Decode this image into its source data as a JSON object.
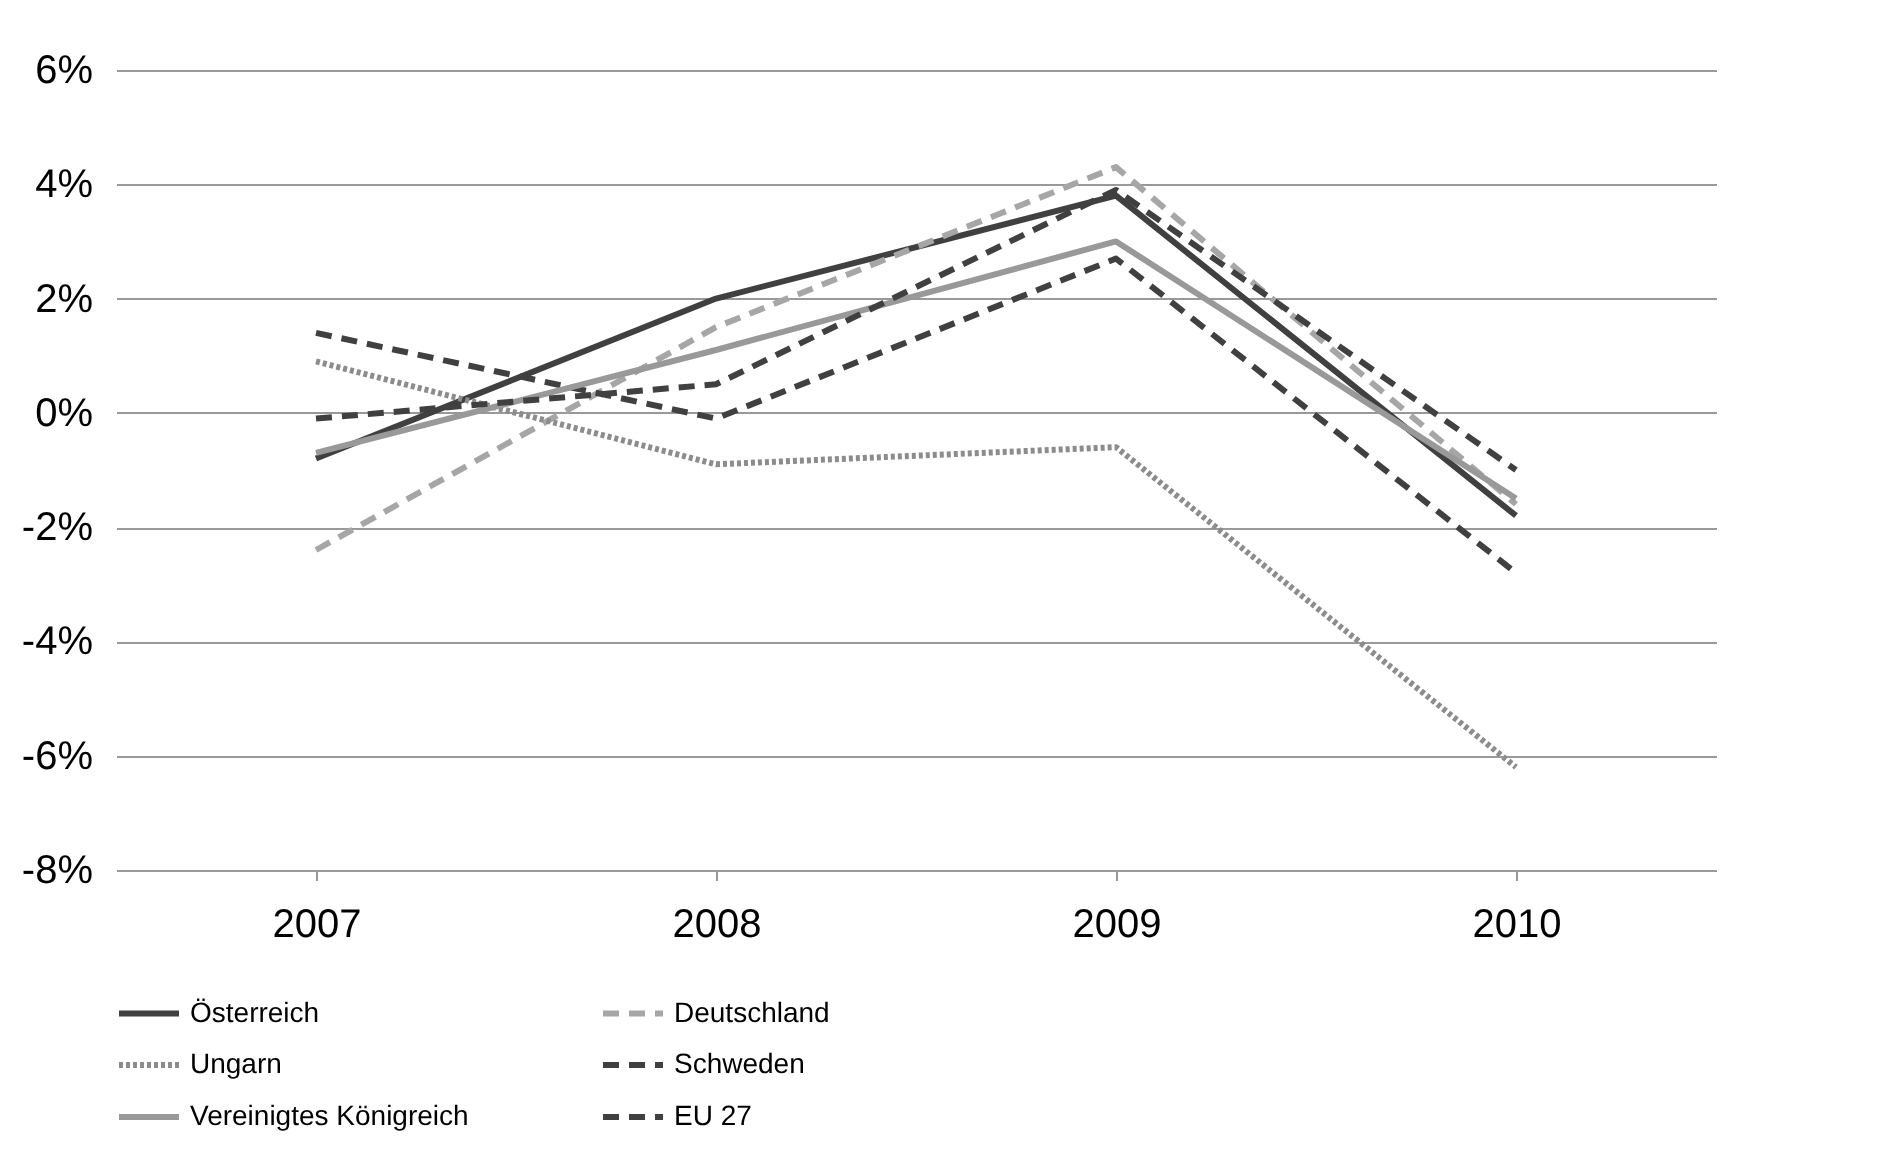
{
  "chart_data": {
    "type": "line",
    "categories": [
      "2007",
      "2008",
      "2009",
      "2010"
    ],
    "series": [
      {
        "name": "Österreich",
        "color": "#404040",
        "line_style": "solid",
        "values": [
          -0.8,
          2.0,
          3.8,
          -1.8
        ]
      },
      {
        "name": "Deutschland",
        "color": "#a6a6a6",
        "line_style": "dashed",
        "values": [
          -2.4,
          1.5,
          4.3,
          -1.6
        ]
      },
      {
        "name": "Ungarn",
        "color": "#8c8c8c",
        "line_style": "dotted",
        "values": [
          0.9,
          -0.9,
          -0.6,
          -6.2
        ]
      },
      {
        "name": "Schweden",
        "color": "#404040",
        "line_style": "dashed",
        "values": [
          1.4,
          -0.1,
          2.7,
          -2.8
        ]
      },
      {
        "name": "Vereinigtes Königreich",
        "color": "#999999",
        "line_style": "solid",
        "values": [
          -0.7,
          1.1,
          3.0,
          -1.5
        ]
      },
      {
        "name": "EU 27",
        "color": "#404040",
        "line_style": "dashed",
        "values": [
          -0.1,
          0.5,
          3.9,
          -1.0
        ]
      }
    ],
    "ylim": [
      -8,
      6
    ],
    "yticks": [
      {
        "value": -8,
        "label": "-8%"
      },
      {
        "value": -6,
        "label": "-6%"
      },
      {
        "value": -4,
        "label": "-4%"
      },
      {
        "value": -2,
        "label": "-2%"
      },
      {
        "value": 0,
        "label": "0%"
      },
      {
        "value": 2,
        "label": "2%"
      },
      {
        "value": 4,
        "label": "4%"
      },
      {
        "value": 6,
        "label": "6%"
      }
    ],
    "grid": "y",
    "legend": "bottom",
    "marker": "none"
  }
}
